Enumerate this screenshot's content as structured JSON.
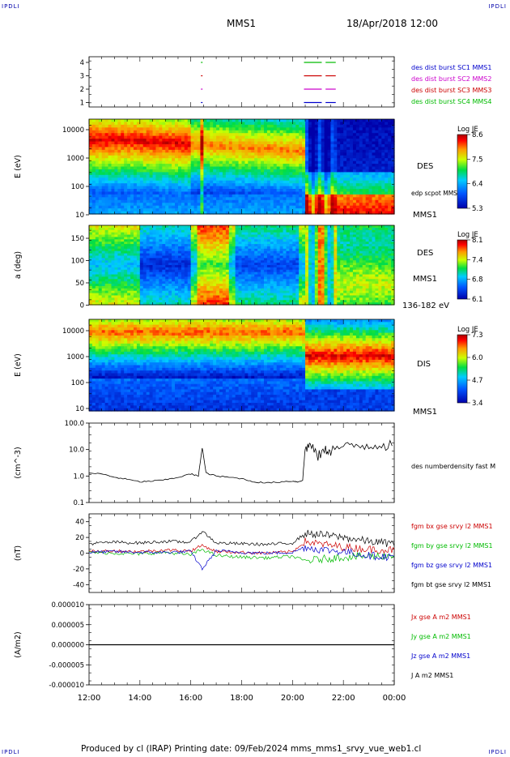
{
  "header": {
    "corner_tl": "IPDLI",
    "corner_tr": "IPDLI",
    "corner_bl": "IPDLI",
    "corner_br": "IPDLI",
    "spacecraft": "MMS1",
    "datetime": "18/Apr/2018 12:00"
  },
  "footer": {
    "text": "Produced by cl (IRAP)   Printing date: 09/Feb/2024   mms_mms1_srvy_vue_web1.cl"
  },
  "colors": {
    "mms1": "#0000cc",
    "mms2": "#cc00cc",
    "mms3": "#cc0000",
    "mms4": "#00bb00",
    "bx": "#cc0000",
    "by": "#00bb00",
    "bz": "#0000cc",
    "bt": "#000000"
  },
  "time_axis": [
    "12:00",
    "14:00",
    "16:00",
    "18:00",
    "20:00",
    "22:00",
    "00:00"
  ],
  "chart_data": [
    {
      "type": "scatter",
      "id": "burst",
      "yticks": [
        "4",
        "3",
        "2",
        "1"
      ],
      "legend": [
        "des dist burst SC1 MMS1",
        "des dist burst SC2 MMS2",
        "des dist burst SC3 MMS3",
        "des dist burst SC4 MMS4"
      ],
      "intervals_hours": [
        {
          "sc": 4,
          "segments": [
            [
              16.4,
              16.45
            ],
            [
              20.45,
              21.15
            ],
            [
              21.3,
              21.7
            ]
          ]
        },
        {
          "sc": 3,
          "segments": [
            [
              16.4,
              16.45
            ],
            [
              20.45,
              21.15
            ],
            [
              21.3,
              21.7
            ]
          ]
        },
        {
          "sc": 2,
          "segments": [
            [
              16.4,
              16.45
            ],
            [
              20.45,
              21.15
            ],
            [
              21.3,
              21.7
            ]
          ]
        },
        {
          "sc": 1,
          "segments": [
            [
              16.4,
              16.45
            ],
            [
              20.45,
              21.15
            ],
            [
              21.3,
              21.7
            ]
          ]
        }
      ]
    },
    {
      "type": "heatmap",
      "id": "des_energy",
      "ylabel": "E (eV)",
      "yticks": [
        "10000",
        "1000",
        "100",
        "10"
      ],
      "ylim": [
        10,
        30000
      ],
      "label": "DES",
      "overlay_label": "edp scpot MMS1",
      "sc_label": "MMS1",
      "colorbar": {
        "title": "Log JE",
        "ticks": [
          "8.6",
          "7.5",
          "6.4",
          "5.3"
        ]
      }
    },
    {
      "type": "heatmap",
      "id": "des_pitch",
      "ylabel": "a (deg)",
      "yticks": [
        "150",
        "100",
        "50",
        "0"
      ],
      "ylim": [
        0,
        180
      ],
      "label": "DES",
      "sc_label": "MMS1",
      "range_label": "136-182 eV",
      "colorbar": {
        "title": "Log JE",
        "ticks": [
          "8.1",
          "7.4",
          "6.8",
          "6.1"
        ]
      }
    },
    {
      "type": "heatmap",
      "id": "dis_energy",
      "ylabel": "E (eV)",
      "yticks": [
        "10000",
        "1000",
        "100",
        "10"
      ],
      "ylim": [
        10,
        30000
      ],
      "label": "DIS",
      "sc_label": "MMS1",
      "colorbar": {
        "title": "Log JE",
        "ticks": [
          "7.3",
          "6.0",
          "4.7",
          "3.4"
        ]
      }
    },
    {
      "type": "line",
      "id": "density",
      "ylabel": "(cm^-3)",
      "yticks": [
        "100.0",
        "10.0",
        "1.0",
        "0.1"
      ],
      "ylim": [
        0.1,
        100
      ],
      "log": true,
      "legend": [
        "des numberdensity fast M"
      ],
      "x": [
        12.0,
        12.5,
        13.0,
        13.5,
        14.0,
        14.5,
        15.0,
        15.5,
        16.0,
        16.3,
        16.45,
        16.6,
        17.0,
        17.5,
        18.0,
        18.5,
        19.0,
        19.5,
        20.0,
        20.2,
        20.4,
        20.5,
        20.7,
        21.0,
        21.3,
        21.5,
        22.0,
        22.5,
        23.0,
        23.5,
        24.0
      ],
      "y": [
        1.3,
        1.2,
        0.9,
        0.75,
        0.6,
        0.65,
        0.72,
        0.9,
        1.2,
        1.0,
        12.0,
        1.3,
        1.0,
        0.9,
        0.8,
        0.6,
        0.55,
        0.6,
        0.65,
        0.6,
        0.7,
        12.0,
        15.0,
        6.0,
        10.0,
        10.0,
        13.0,
        14.0,
        15.0,
        16.0,
        15.0
      ]
    },
    {
      "type": "line",
      "id": "bfield",
      "ylabel": "(nT)",
      "yticks": [
        "40",
        "20",
        "0",
        "-20",
        "-40"
      ],
      "ylim": [
        -50,
        50
      ],
      "legend": [
        "fgm bx gse srvy l2 MMS1",
        "fgm by gse srvy l2 MMS1",
        "fgm bz gse srvy l2 MMS1",
        "fgm bt gse srvy l2 MMS1"
      ],
      "x": [
        12.0,
        13.0,
        14.0,
        15.0,
        16.0,
        16.45,
        17.0,
        18.0,
        19.0,
        20.0,
        20.5,
        21.0,
        22.0,
        23.0,
        24.0
      ],
      "series": [
        {
          "name": "fgm bx gse srvy l2 MMS1",
          "values": [
            2,
            3,
            2,
            4,
            3,
            10,
            2,
            1,
            0,
            2,
            15,
            12,
            8,
            5,
            4
          ]
        },
        {
          "name": "fgm by gse srvy l2 MMS1",
          "values": [
            1,
            0,
            -1,
            1,
            -2,
            5,
            -3,
            -5,
            -6,
            -4,
            -10,
            -8,
            -5,
            -4,
            -3
          ]
        },
        {
          "name": "fgm bz gse srvy l2 MMS1",
          "values": [
            1,
            2,
            1,
            1,
            2,
            -20,
            3,
            1,
            0,
            1,
            8,
            5,
            2,
            -3,
            -5
          ]
        },
        {
          "name": "fgm bt gse srvy l2 MMS1",
          "values": [
            12,
            14,
            13,
            15,
            14,
            28,
            13,
            12,
            11,
            13,
            25,
            24,
            20,
            15,
            12
          ]
        }
      ]
    },
    {
      "type": "line",
      "id": "current",
      "ylabel": "(A/m2)",
      "yticks": [
        "0.000010",
        "0.000005",
        "0.000000",
        "-0.000005",
        "-0.000010"
      ],
      "ylim": [
        -1e-05,
        1e-05
      ],
      "legend": [
        "Jx gse A m2 MMS1",
        "Jy gse A m2 MMS1",
        "Jz gse A m2 MMS1",
        "J A m2 MMS1"
      ],
      "x": [
        12.0,
        24.0
      ],
      "series": [
        {
          "name": "Jx gse A m2 MMS1",
          "values": [
            0,
            0
          ]
        },
        {
          "name": "Jy gse A m2 MMS1",
          "values": [
            0,
            0
          ]
        },
        {
          "name": "Jz gse A m2 MMS1",
          "values": [
            0,
            0
          ]
        },
        {
          "name": "J A m2 MMS1",
          "values": [
            0,
            0
          ]
        }
      ]
    }
  ]
}
